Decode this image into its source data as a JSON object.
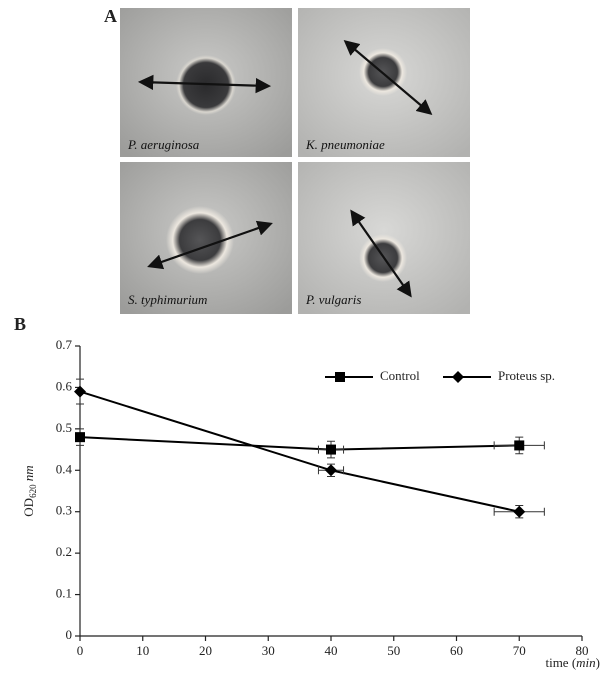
{
  "panel_a": {
    "label": "A",
    "images": [
      "P. aeruginosa",
      "K. pneumoniae",
      "S. typhimurium",
      "P. vulgaris"
    ]
  },
  "panel_b_label": "B",
  "chart_data": {
    "type": "line",
    "xlabel": [
      "time (",
      "min",
      ")"
    ],
    "ylabel": [
      "OD",
      "620",
      " nm"
    ],
    "x": [
      0,
      40,
      70
    ],
    "series": [
      {
        "name": "Control",
        "color": "#000000",
        "marker": "square",
        "values": [
          0.48,
          0.45,
          0.46
        ],
        "errors": [
          0.02,
          0.02,
          0.02
        ],
        "x_errors": [
          0,
          2,
          4
        ]
      },
      {
        "name": "Proteus sp.",
        "color": "#000000",
        "marker": "diamond",
        "values": [
          0.59,
          0.4,
          0.3
        ],
        "errors": [
          0.03,
          0.015,
          0.015
        ],
        "x_errors": [
          0,
          2,
          4
        ]
      }
    ],
    "xlim": [
      0,
      80
    ],
    "xticks": [
      0,
      10,
      20,
      30,
      40,
      50,
      60,
      70,
      80
    ],
    "ylim": [
      0,
      0.7
    ],
    "yticks": [
      0,
      0.1,
      0.2,
      0.3,
      0.4,
      0.5,
      0.6,
      0.7
    ],
    "grid": false,
    "legend": "top-right"
  }
}
